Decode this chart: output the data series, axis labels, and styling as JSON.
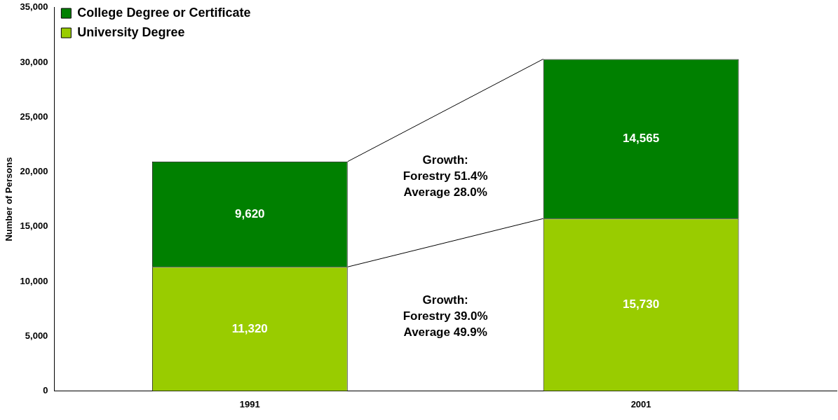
{
  "chart_data": {
    "type": "bar",
    "stacked": true,
    "ylabel": "Number of Persons",
    "categories": [
      "1991",
      "2001"
    ],
    "series": [
      {
        "name": "University Degree",
        "color": "#99cc00",
        "values": [
          11320,
          15730
        ]
      },
      {
        "name": "College Degree or Certificate",
        "color": "#008000",
        "values": [
          9620,
          14565
        ]
      }
    ],
    "ylim": [
      0,
      35000
    ],
    "yticks": [
      {
        "value": 0,
        "label": "0"
      },
      {
        "value": 5000,
        "label": "5,000"
      },
      {
        "value": 10000,
        "label": "10,000"
      },
      {
        "value": 15000,
        "label": "15,000"
      },
      {
        "value": 20000,
        "label": "20,000"
      },
      {
        "value": 25000,
        "label": "25,000"
      },
      {
        "value": 30000,
        "label": "30,000"
      },
      {
        "value": 35000,
        "label": "35,000"
      }
    ],
    "grid": false,
    "legend": "top left",
    "value_labels": [
      [
        "11,320",
        "15,730"
      ],
      [
        "9,620",
        "14,565"
      ]
    ],
    "annotations": [
      "Growth:\nForestry 51.4%\nAverage 28.0%",
      "Growth:\nForestry 39.0%\nAverage 49.9%"
    ]
  }
}
